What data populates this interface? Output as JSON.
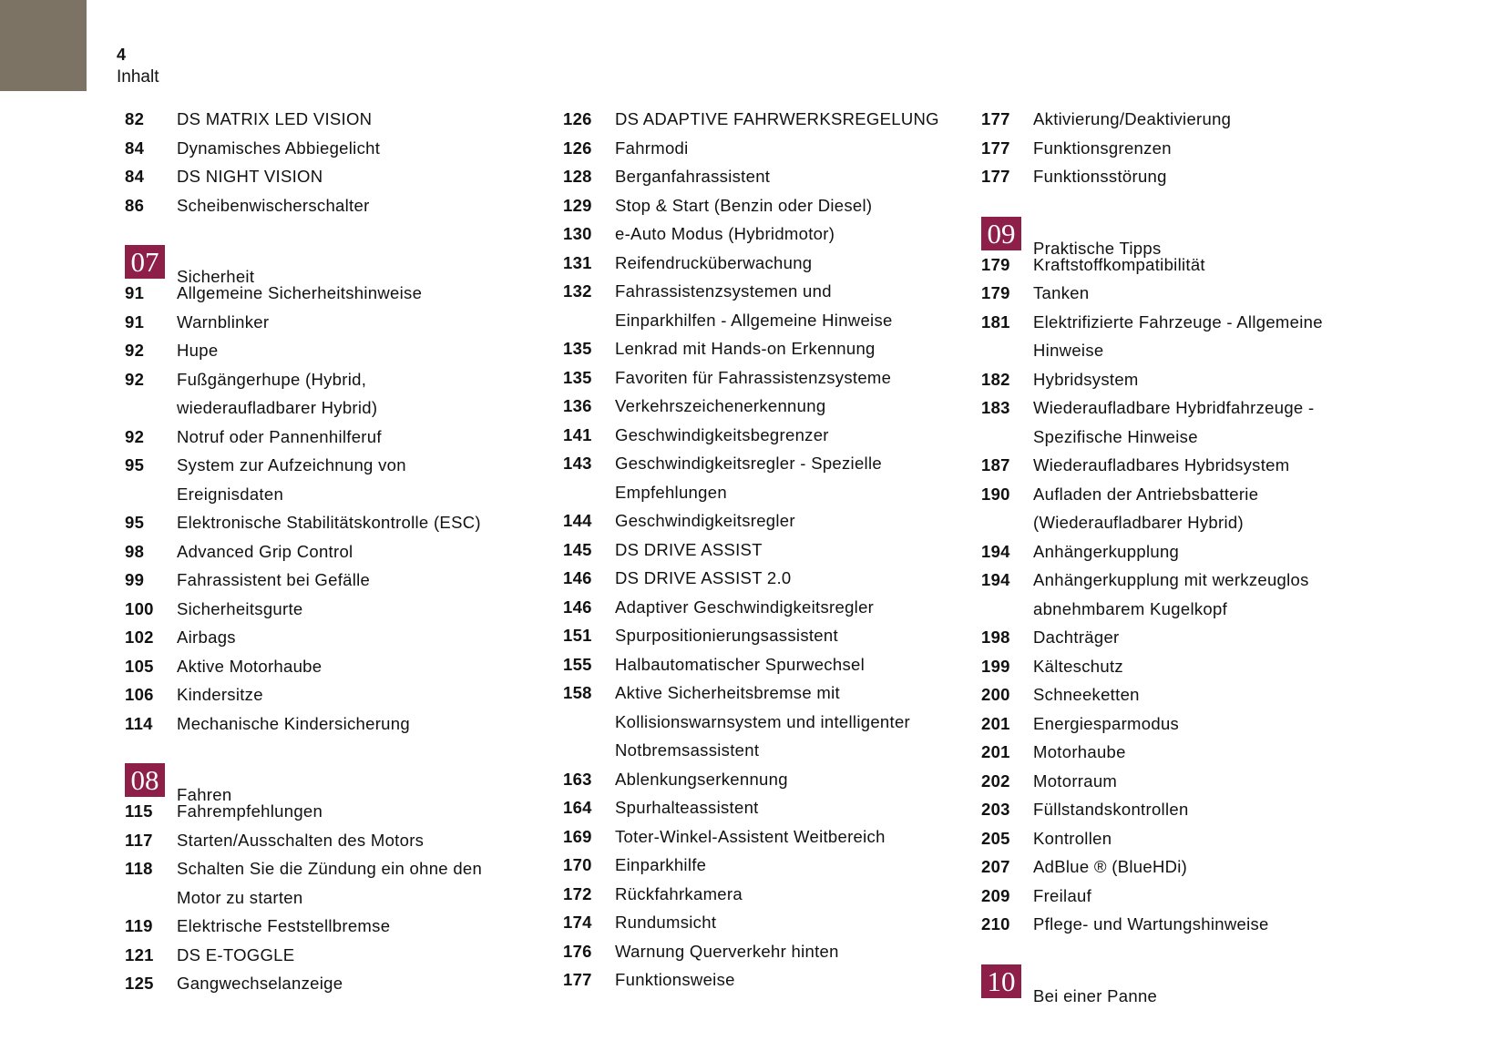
{
  "header": {
    "page_number": "4",
    "title": "Inhalt"
  },
  "colors": {
    "tab": "#7d7365",
    "chapter_badge": "#8e1f48"
  },
  "columns": [
    [
      {
        "page": "82",
        "title": "DS MATRIX LED VISION"
      },
      {
        "page": "84",
        "title": "Dynamisches Abbiegelicht"
      },
      {
        "page": "84",
        "title": "DS NIGHT VISION"
      },
      {
        "page": "86",
        "title": "Scheibenwischerschalter"
      },
      {
        "chapter": "07",
        "title": "Sicherheit"
      },
      {
        "page": "91",
        "title": "Allgemeine Sicherheitshinweise"
      },
      {
        "page": "91",
        "title": "Warnblinker"
      },
      {
        "page": "92",
        "title": "Hupe"
      },
      {
        "page": "92",
        "title": "Fußgängerhupe (Hybrid,\nwiederaufladbarer Hybrid)"
      },
      {
        "page": "92",
        "title": "Notruf oder Pannenhilferuf"
      },
      {
        "page": "95",
        "title": "System zur Aufzeichnung von\nEreignisdaten"
      },
      {
        "page": "95",
        "title": "Elektronische Stabilitätskontrolle (ESC)"
      },
      {
        "page": "98",
        "title": "Advanced Grip Control"
      },
      {
        "page": "99",
        "title": "Fahrassistent bei Gefälle"
      },
      {
        "page": "100",
        "title": "Sicherheitsgurte"
      },
      {
        "page": "102",
        "title": "Airbags"
      },
      {
        "page": "105",
        "title": "Aktive Motorhaube"
      },
      {
        "page": "106",
        "title": "Kindersitze"
      },
      {
        "page": "114",
        "title": "Mechanische Kindersicherung"
      },
      {
        "chapter": "08",
        "title": "Fahren"
      },
      {
        "page": "115",
        "title": "Fahrempfehlungen"
      },
      {
        "page": "117",
        "title": "Starten/Ausschalten des Motors"
      },
      {
        "page": "118",
        "title": "Schalten Sie die Zündung ein ohne den\nMotor zu starten"
      },
      {
        "page": "119",
        "title": "Elektrische Feststellbremse"
      },
      {
        "page": "121",
        "title": "DS E-TOGGLE"
      },
      {
        "page": "125",
        "title": "Gangwechselanzeige"
      }
    ],
    [
      {
        "page": "126",
        "title": "DS ADAPTIVE FAHRWERKSREGELUNG"
      },
      {
        "page": "126",
        "title": "Fahrmodi"
      },
      {
        "page": "128",
        "title": "Berganfahrassistent"
      },
      {
        "page": "129",
        "title": "Stop & Start (Benzin oder Diesel)"
      },
      {
        "page": "130",
        "title": "e-Auto Modus (Hybridmotor)"
      },
      {
        "page": "131",
        "title": "Reifendrucküberwachung"
      },
      {
        "page": "132",
        "title": "Fahrassistenzsystemen und\nEinparkhilfen - Allgemeine Hinweise"
      },
      {
        "page": "135",
        "title": "Lenkrad mit Hands-on Erkennung"
      },
      {
        "page": "135",
        "title": "Favoriten für Fahrassistenzsysteme"
      },
      {
        "page": "136",
        "title": "Verkehrszeichenerkennung"
      },
      {
        "page": "141",
        "title": "Geschwindigkeitsbegrenzer"
      },
      {
        "page": "143",
        "title": "Geschwindigkeitsregler - Spezielle\nEmpfehlungen"
      },
      {
        "page": "144",
        "title": "Geschwindigkeitsregler"
      },
      {
        "page": "145",
        "title": "DS DRIVE ASSIST"
      },
      {
        "page": "146",
        "title": "DS DRIVE ASSIST 2.0"
      },
      {
        "page": "146",
        "title": "Adaptiver Geschwindigkeitsregler"
      },
      {
        "page": "151",
        "title": "Spurpositionierungsassistent"
      },
      {
        "page": "155",
        "title": "Halbautomatischer Spurwechsel"
      },
      {
        "page": "158",
        "title": "Aktive Sicherheitsbremse mit\nKollisionswarnsystem und intelligenter\nNotbremsassistent"
      },
      {
        "page": "163",
        "title": "Ablenkungserkennung"
      },
      {
        "page": "164",
        "title": "Spurhalteassistent"
      },
      {
        "page": "169",
        "title": "Toter-Winkel-Assistent Weitbereich"
      },
      {
        "page": "170",
        "title": "Einparkhilfe"
      },
      {
        "page": "172",
        "title": "Rückfahrkamera"
      },
      {
        "page": "174",
        "title": "Rundumsicht"
      },
      {
        "page": "176",
        "title": "Warnung Querverkehr hinten"
      },
      {
        "page": "177",
        "title": "Funktionsweise"
      }
    ],
    [
      {
        "page": "177",
        "title": "Aktivierung/Deaktivierung"
      },
      {
        "page": "177",
        "title": "Funktionsgrenzen"
      },
      {
        "page": "177",
        "title": "Funktionsstörung"
      },
      {
        "chapter": "09",
        "title": "Praktische Tipps"
      },
      {
        "page": "179",
        "title": "Kraftstoffkompatibilität"
      },
      {
        "page": "179",
        "title": "Tanken"
      },
      {
        "page": "181",
        "title": "Elektrifizierte Fahrzeuge - Allgemeine\nHinweise"
      },
      {
        "page": "182",
        "title": "Hybridsystem"
      },
      {
        "page": "183",
        "title": "Wiederaufladbare Hybridfahrzeuge -\nSpezifische Hinweise"
      },
      {
        "page": "187",
        "title": "Wiederaufladbares Hybridsystem"
      },
      {
        "page": "190",
        "title": "Aufladen der Antriebsbatterie\n(Wiederaufladbarer Hybrid)"
      },
      {
        "page": "194",
        "title": "Anhängerkupplung"
      },
      {
        "page": "194",
        "title": "Anhängerkupplung mit werkzeuglos\nabnehmbarem Kugelkopf"
      },
      {
        "page": "198",
        "title": "Dachträger"
      },
      {
        "page": "199",
        "title": "Kälteschutz"
      },
      {
        "page": "200",
        "title": "Schneeketten"
      },
      {
        "page": "201",
        "title": "Energiesparmodus"
      },
      {
        "page": "201",
        "title": "Motorhaube"
      },
      {
        "page": "202",
        "title": "Motorraum"
      },
      {
        "page": "203",
        "title": "Füllstandskontrollen"
      },
      {
        "page": "205",
        "title": "Kontrollen"
      },
      {
        "page": "207",
        "title": "AdBlue ® (BlueHDi)"
      },
      {
        "page": "209",
        "title": "Freilauf"
      },
      {
        "page": "210",
        "title": "Pflege- und Wartungshinweise"
      },
      {
        "chapter": "10",
        "title": "Bei einer Panne"
      }
    ]
  ]
}
